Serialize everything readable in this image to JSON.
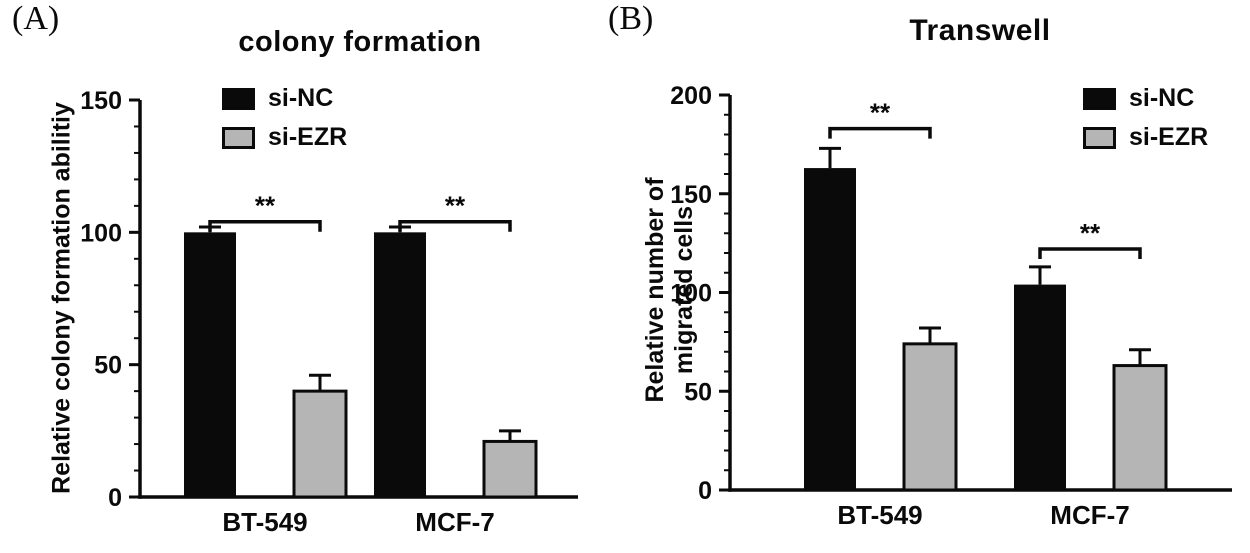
{
  "chart_data": [
    {
      "type": "bar",
      "panel_label": "(A)",
      "title": "colony formation",
      "ylabel": "Relative colony formation abilitiy",
      "xlabel": "",
      "categories": [
        "BT-549",
        "MCF-7"
      ],
      "series": [
        {
          "name": "si-NC",
          "color": "#0a0a0a",
          "values": [
            100,
            100
          ],
          "errors": [
            2,
            2
          ]
        },
        {
          "name": "si-EZR",
          "color": "#b5b5b5",
          "values": [
            40,
            21
          ],
          "errors": [
            6,
            4
          ]
        }
      ],
      "ylim": [
        0,
        150
      ],
      "yticks": [
        0,
        50,
        100,
        150
      ],
      "minor_tick_step": 10,
      "grid": false,
      "legend_position": "top-left",
      "significance": [
        {
          "category": "BT-549",
          "label": "**",
          "bracket_y": 104
        },
        {
          "category": "MCF-7",
          "label": "**",
          "bracket_y": 104
        }
      ]
    },
    {
      "type": "bar",
      "panel_label": "(B)",
      "title": "Transwell",
      "ylabel": "Relative number of\nmigrated cells",
      "xlabel": "",
      "categories": [
        "BT-549",
        "MCF-7"
      ],
      "series": [
        {
          "name": "si-NC",
          "color": "#0a0a0a",
          "values": [
            163,
            104
          ],
          "errors": [
            10,
            9
          ]
        },
        {
          "name": "si-EZR",
          "color": "#b5b5b5",
          "values": [
            74,
            63
          ],
          "errors": [
            8,
            8
          ]
        }
      ],
      "ylim": [
        0,
        200
      ],
      "yticks": [
        0,
        50,
        100,
        150,
        200
      ],
      "minor_tick_step": 10,
      "grid": false,
      "legend_position": "top-right",
      "significance": [
        {
          "category": "BT-549",
          "label": "**",
          "bracket_y": 183
        },
        {
          "category": "MCF-7",
          "label": "**",
          "bracket_y": 122
        }
      ]
    }
  ]
}
